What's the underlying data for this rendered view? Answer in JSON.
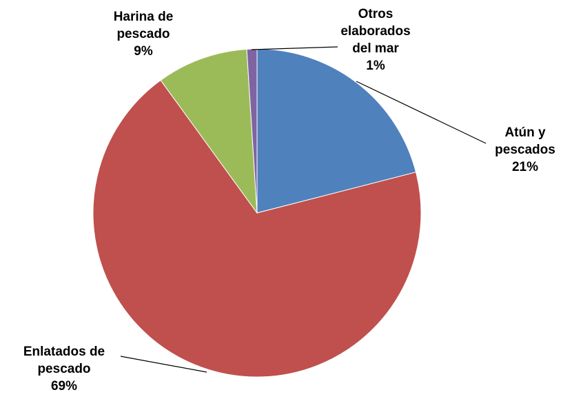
{
  "chart_data": {
    "type": "pie",
    "categories": [
      "Atún y pescados",
      "Enlatados de pescado",
      "Harina de pescado",
      "Otros elaborados del mar"
    ],
    "values": [
      21,
      69,
      9,
      1
    ],
    "value_labels": [
      "21%",
      "69%",
      "9%",
      "1%"
    ],
    "colors": [
      "#4f81bd",
      "#c0504d",
      "#9bbb59",
      "#8064a2"
    ]
  }
}
